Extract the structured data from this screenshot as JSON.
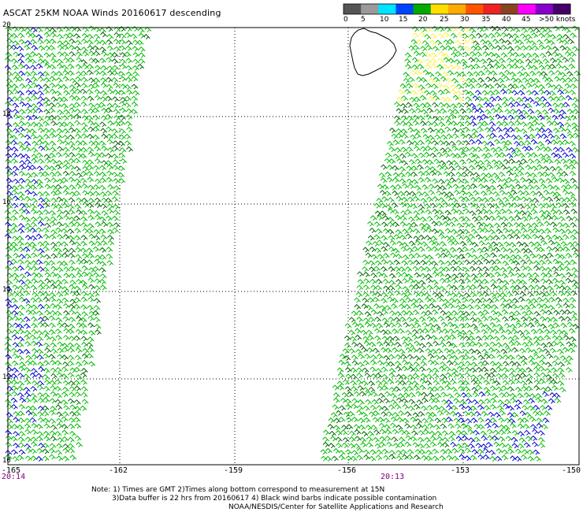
{
  "title": "ASCAT 25KM NOAA Winds 20160617 descending",
  "legend": {
    "labels": [
      "0",
      "5",
      "10",
      "15",
      "20",
      "25",
      "30",
      "35",
      "40",
      "45",
      ">50 knots"
    ],
    "colors": [
      "#555555",
      "#9a9a9a",
      "#00e5ff",
      "#0044ff",
      "#00aa00",
      "#ffdd00",
      "#ffaa00",
      "#ff5500",
      "#ee2222",
      "#884422",
      "#ff00ff",
      "#8800cc",
      "#440066"
    ]
  },
  "axes": {
    "lat_labels": [
      "20",
      "18",
      "16",
      "14",
      "12",
      "10"
    ],
    "lon_labels": [
      "-165",
      "-162",
      "-159",
      "-156",
      "-153",
      "-150"
    ],
    "time_labels": [
      "20:14",
      "20:13"
    ]
  },
  "notes": {
    "line1": "Note: 1) Times are GMT 2)Times along bottom correspond to measurement at 15N",
    "line2": "3)Data buffer is 22 hrs from 20160617 4) Black wind barbs indicate possible contamination",
    "line3": "NOAA/NESDIS/Center for Satellite Applications and Research"
  },
  "barb_colors": {
    "green": "#00bb00",
    "dark_green": "#006600",
    "blue": "#0000cc",
    "yellow": "#ffee44"
  }
}
